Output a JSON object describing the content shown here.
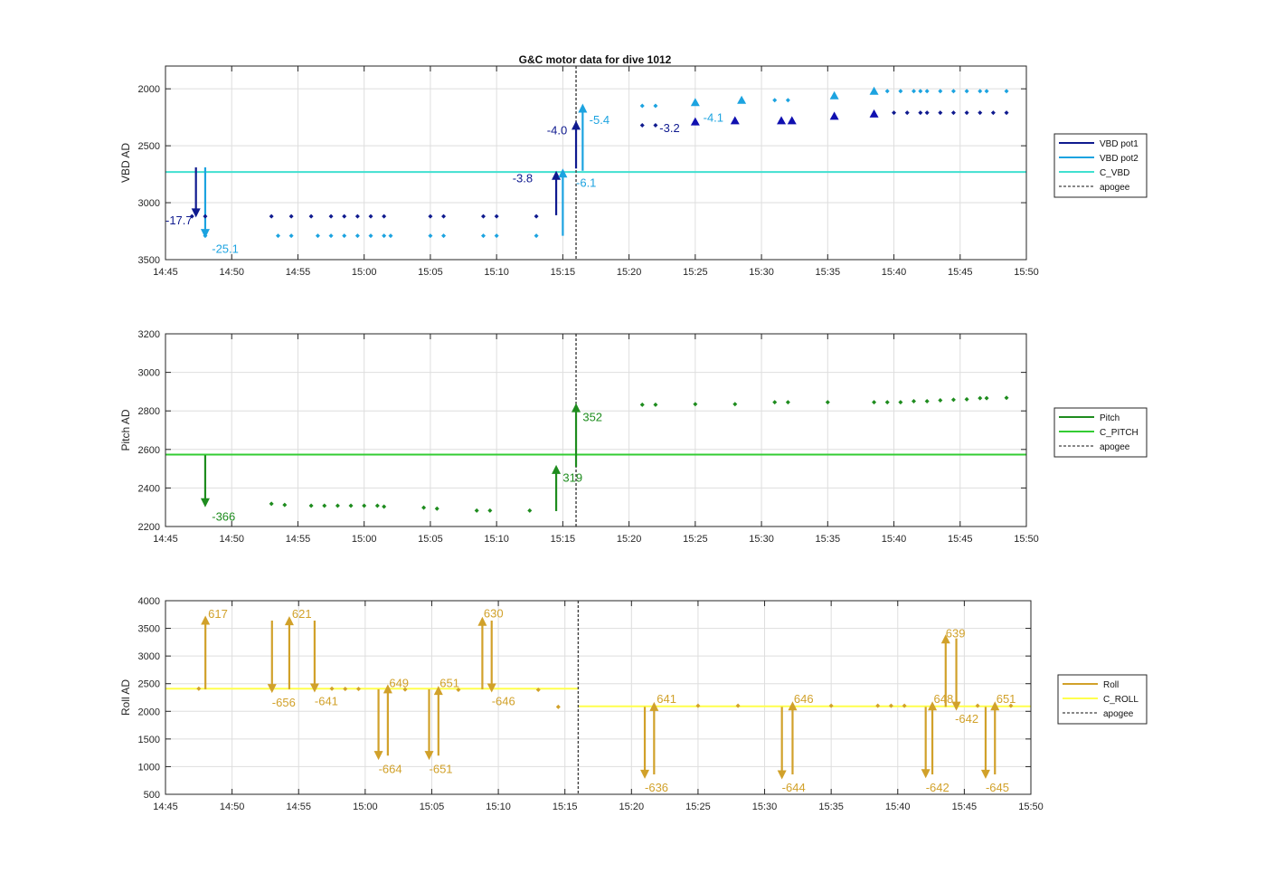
{
  "figure": {
    "title": "G&C motor data for dive 1012"
  },
  "chart_data": [
    {
      "type": "scatter",
      "ylabel": "VBD AD",
      "ylim": [
        1800,
        3500
      ],
      "yreverse": true,
      "yticks": [
        2000,
        2500,
        3000,
        3500
      ],
      "xlim": [
        "14:45",
        "15:50"
      ],
      "xticks": [
        "14:45",
        "14:50",
        "14:55",
        "15:00",
        "15:05",
        "15:10",
        "15:15",
        "15:20",
        "15:25",
        "15:30",
        "15:35",
        "15:40",
        "15:45",
        "15:50"
      ],
      "grid": true,
      "legend_placement": "outside-right",
      "series": [
        {
          "name": "VBD pot1",
          "color": "#0f1a8f",
          "marker": "dot",
          "x": [
            "14:47",
            "14:48",
            "14:53",
            "14:54.5",
            "14:56",
            "14:57.5",
            "14:58.5",
            "14:59.5",
            "15:00.5",
            "15:01.5",
            "15:05",
            "15:06",
            "15:09",
            "15:10",
            "15:13",
            "15:21",
            "15:22",
            "15:40",
            "15:41",
            "15:42",
            "15:42.5",
            "15:43.5",
            "15:44.5",
            "15:45.5",
            "15:46.5",
            "15:47.5",
            "15:48.5"
          ],
          "y": [
            3120,
            3120,
            3120,
            3120,
            3120,
            3120,
            3120,
            3120,
            3120,
            3120,
            3120,
            3120,
            3120,
            3120,
            3120,
            2320,
            2320,
            2210,
            2210,
            2210,
            2210,
            2210,
            2210,
            2210,
            2210,
            2210,
            2210
          ]
        },
        {
          "name": "VBD pot1 (triangle)",
          "color": "#1010b0",
          "marker": "triangle",
          "x": [
            "15:25",
            "15:28",
            "15:31.5",
            "15:32.3",
            "15:35.5",
            "15:38.5"
          ],
          "y": [
            2290,
            2280,
            2280,
            2280,
            2240,
            2220
          ]
        },
        {
          "name": "VBD pot2",
          "color": "#1ca3e0",
          "marker": "dot",
          "x": [
            "14:48",
            "14:53.5",
            "14:54.5",
            "14:56.5",
            "14:57.5",
            "14:58.5",
            "14:59.5",
            "15:00.5",
            "15:01.5",
            "15:02",
            "15:05",
            "15:06",
            "15:09",
            "15:10",
            "15:13",
            "15:21",
            "15:22",
            "15:31",
            "15:32",
            "15:39.5",
            "15:40.5",
            "15:41.5",
            "15:42",
            "15:42.5",
            "15:43.5",
            "15:44.5",
            "15:45.5",
            "15:46.5",
            "15:47",
            "15:48.5"
          ],
          "y": [
            3290,
            3290,
            3290,
            3290,
            3290,
            3290,
            3290,
            3290,
            3290,
            3290,
            3290,
            3290,
            3290,
            3290,
            3290,
            2150,
            2150,
            2100,
            2100,
            2020,
            2020,
            2020,
            2020,
            2020,
            2020,
            2020,
            2020,
            2020,
            2020,
            2020
          ]
        },
        {
          "name": "VBD pot2 (triangle)",
          "color": "#1ca3e0",
          "marker": "triangle",
          "x": [
            "15:25",
            "15:28.5",
            "15:35.5",
            "15:38.5"
          ],
          "y": [
            2120,
            2100,
            2060,
            2020
          ]
        },
        {
          "name": "C_VBD",
          "color": "#40e0d0",
          "type": "hline",
          "y": 2730
        },
        {
          "name": "apogee",
          "color": "#404040",
          "type": "vline",
          "x": "15:16"
        }
      ],
      "arrows": [
        {
          "x": "14:47.3",
          "y1": 2690,
          "y2": 3130,
          "color": "#0f1a8f",
          "label": "-17.7",
          "label_x": "14:45",
          "label_y": 3150
        },
        {
          "x": "14:48",
          "y1": 2690,
          "y2": 3310,
          "color": "#1ca3e0",
          "label": "-25.1",
          "label_x": "14:48.5",
          "label_y": 3400
        },
        {
          "x": "15:14.5",
          "y1": 3110,
          "y2": 2720,
          "color": "#0f1a8f",
          "label": "-3.8",
          "label_x": "15:11.2",
          "label_y": 2780
        },
        {
          "x": "15:15",
          "y1": 3290,
          "y2": 2700,
          "color": "#1ca3e0",
          "label": "-6.1",
          "label_x": "15:16",
          "label_y": 2820
        },
        {
          "x": "15:16",
          "y1": 2700,
          "y2": 2280,
          "color": "#0f1a8f",
          "label": "-4.0",
          "label_x": "15:13.8",
          "label_y": 2360
        },
        {
          "x": "15:16.5",
          "y1": 2720,
          "y2": 2130,
          "color": "#1ca3e0",
          "label": "-5.4",
          "label_x": "15:17",
          "label_y": 2270
        }
      ],
      "annotations": [
        {
          "text": "-3.2",
          "x": "15:22.3",
          "y": 2340,
          "color": "#0f1a8f"
        },
        {
          "text": "-4.1",
          "x": "15:25.6",
          "y": 2250,
          "color": "#1ca3e0"
        }
      ]
    },
    {
      "type": "scatter",
      "ylabel": "Pitch AD",
      "ylim": [
        2200,
        3200
      ],
      "yticks": [
        2200,
        2400,
        2600,
        2800,
        3000,
        3200
      ],
      "xlim": [
        "14:45",
        "15:50"
      ],
      "xticks": [
        "14:45",
        "14:50",
        "14:55",
        "15:00",
        "15:05",
        "15:10",
        "15:15",
        "15:20",
        "15:25",
        "15:30",
        "15:35",
        "15:40",
        "15:45",
        "15:50"
      ],
      "grid": true,
      "legend_placement": "outside-right",
      "series": [
        {
          "name": "Pitch",
          "color": "#1e8c1e",
          "marker": "dot",
          "x": [
            "14:53",
            "14:54",
            "14:56",
            "14:57",
            "14:58",
            "14:59",
            "15:00",
            "15:01",
            "15:01.5",
            "15:04.5",
            "15:05.5",
            "15:08.5",
            "15:09.5",
            "15:12.5",
            "15:21",
            "15:22",
            "15:25",
            "15:28",
            "15:31",
            "15:32",
            "15:35",
            "15:38.5",
            "15:39.5",
            "15:40.5",
            "15:41.5",
            "15:42.5",
            "15:43.5",
            "15:44.5",
            "15:45.5",
            "15:46.5",
            "15:47",
            "15:48.5"
          ],
          "y": [
            2318,
            2312,
            2308,
            2308,
            2308,
            2308,
            2308,
            2308,
            2303,
            2298,
            2293,
            2283,
            2283,
            2283,
            2832,
            2832,
            2835,
            2835,
            2845,
            2845,
            2845,
            2845,
            2845,
            2845,
            2850,
            2850,
            2855,
            2858,
            2860,
            2866,
            2866,
            2868
          ]
        },
        {
          "name": "C_PITCH",
          "color": "#33cc33",
          "type": "hline",
          "y": 2573
        },
        {
          "name": "apogee",
          "color": "#404040",
          "type": "vline",
          "x": "15:16"
        }
      ],
      "arrows": [
        {
          "x": "14:48",
          "y1": 2570,
          "y2": 2300,
          "color": "#1e8c1e",
          "label": "-366",
          "label_x": "14:48.5",
          "label_y": 2255
        },
        {
          "x": "15:14.5",
          "y1": 2280,
          "y2": 2520,
          "color": "#1e8c1e",
          "label": "319",
          "label_x": "15:15",
          "label_y": 2455
        },
        {
          "x": "15:16",
          "y1": 2510,
          "y2": 2840,
          "color": "#1e8c1e",
          "label": "352",
          "label_x": "15:16.5",
          "label_y": 2770
        }
      ],
      "annotations": []
    },
    {
      "type": "scatter",
      "ylabel": "Roll AD",
      "ylim": [
        500,
        4000
      ],
      "yticks": [
        500,
        1000,
        1500,
        2000,
        2500,
        3000,
        3500,
        4000
      ],
      "xlim": [
        "14:45",
        "15:50"
      ],
      "xticks": [
        "14:45",
        "14:50",
        "14:55",
        "15:00",
        "15:05",
        "15:10",
        "15:15",
        "15:20",
        "15:25",
        "15:30",
        "15:35",
        "15:40",
        "15:45",
        "15:50"
      ],
      "grid": true,
      "legend_placement": "outside-right",
      "series": [
        {
          "name": "Roll",
          "color": "#d1a12a",
          "marker": "dot",
          "x": [
            "14:47.5",
            "14:57.5",
            "14:58.5",
            "14:59.5",
            "15:03",
            "15:07",
            "15:13",
            "15:14.5",
            "15:25",
            "15:28",
            "15:35",
            "15:38.5",
            "15:39.5",
            "15:40.5",
            "15:46",
            "15:48.5"
          ],
          "y": [
            2410,
            2410,
            2405,
            2405,
            2395,
            2390,
            2390,
            2080,
            2100,
            2100,
            2100,
            2100,
            2100,
            2100,
            2100,
            2100
          ]
        },
        {
          "name": "C_ROLL",
          "color": "#ffff4d",
          "type": "hline_segments",
          "segments": [
            {
              "x1": "14:45",
              "x2": "15:16",
              "y": 2410
            },
            {
              "x1": "15:16",
              "x2": "15:50",
              "y": 2090
            }
          ]
        },
        {
          "name": "apogee",
          "color": "#404040",
          "type": "vline",
          "x": "15:16"
        }
      ],
      "arrows": [
        {
          "x": "14:48",
          "y1": 2400,
          "y2": 3730,
          "color": "#d1a12a",
          "label": "617",
          "label_x": "14:48.2",
          "label_y": 3770
        },
        {
          "x": "14:53",
          "y1": 3640,
          "y2": 2330,
          "color": "#d1a12a",
          "label": "-656",
          "label_x": "14:53",
          "label_y": 2170
        },
        {
          "x": "14:54.3",
          "y1": 2400,
          "y2": 3720,
          "color": "#d1a12a",
          "label": "621",
          "label_x": "14:54.5",
          "label_y": 3770
        },
        {
          "x": "14:56.2",
          "y1": 3640,
          "y2": 2340,
          "color": "#d1a12a",
          "label": "-641",
          "label_x": "14:56.2",
          "label_y": 2190
        },
        {
          "x": "15:01",
          "y1": 2400,
          "y2": 1120,
          "color": "#d1a12a",
          "label": "-664",
          "label_x": "15:01",
          "label_y": 970
        },
        {
          "x": "15:01.7",
          "y1": 1200,
          "y2": 2490,
          "color": "#d1a12a",
          "label": "649",
          "label_x": "15:01.8",
          "label_y": 2520
        },
        {
          "x": "15:04.8",
          "y1": 2400,
          "y2": 1120,
          "color": "#d1a12a",
          "label": "-651",
          "label_x": "15:04.8",
          "label_y": 970
        },
        {
          "x": "15:05.5",
          "y1": 1200,
          "y2": 2460,
          "color": "#d1a12a",
          "label": "651",
          "label_x": "15:05.6",
          "label_y": 2520
        },
        {
          "x": "15:08.8",
          "y1": 2400,
          "y2": 3710,
          "color": "#d1a12a",
          "label": "630",
          "label_x": "15:08.9",
          "label_y": 3780
        },
        {
          "x": "15:09.5",
          "y1": 3640,
          "y2": 2340,
          "color": "#d1a12a",
          "label": "-646",
          "label_x": "15:09.5",
          "label_y": 2190
        },
        {
          "x": "15:21",
          "y1": 2080,
          "y2": 780,
          "color": "#d1a12a",
          "label": "-636",
          "label_x": "15:21",
          "label_y": 630
        },
        {
          "x": "15:21.7",
          "y1": 860,
          "y2": 2170,
          "color": "#d1a12a",
          "label": "641",
          "label_x": "15:21.9",
          "label_y": 2230
        },
        {
          "x": "15:31.3",
          "y1": 2080,
          "y2": 770,
          "color": "#d1a12a",
          "label": "-644",
          "label_x": "15:31.3",
          "label_y": 630
        },
        {
          "x": "15:32.1",
          "y1": 860,
          "y2": 2180,
          "color": "#d1a12a",
          "label": "646",
          "label_x": "15:32.2",
          "label_y": 2230
        },
        {
          "x": "15:42.1",
          "y1": 2080,
          "y2": 790,
          "color": "#d1a12a",
          "label": "-642",
          "label_x": "15:42.1",
          "label_y": 630
        },
        {
          "x": "15:42.6",
          "y1": 860,
          "y2": 2180,
          "color": "#d1a12a",
          "label": "648",
          "label_x": "15:42.7",
          "label_y": 2230
        },
        {
          "x": "15:43.6",
          "y1": 2080,
          "y2": 3390,
          "color": "#d1a12a",
          "label": "639",
          "label_x": "15:43.6",
          "label_y": 3420
        },
        {
          "x": "15:44.4",
          "y1": 3320,
          "y2": 2010,
          "color": "#d1a12a",
          "label": "-642",
          "label_x": "15:44.3",
          "label_y": 1870
        },
        {
          "x": "15:46.6",
          "y1": 2080,
          "y2": 780,
          "color": "#d1a12a",
          "label": "-645",
          "label_x": "15:46.6",
          "label_y": 630
        },
        {
          "x": "15:47.3",
          "y1": 860,
          "y2": 2180,
          "color": "#d1a12a",
          "label": "651",
          "label_x": "15:47.4",
          "label_y": 2230
        }
      ],
      "annotations": []
    }
  ]
}
